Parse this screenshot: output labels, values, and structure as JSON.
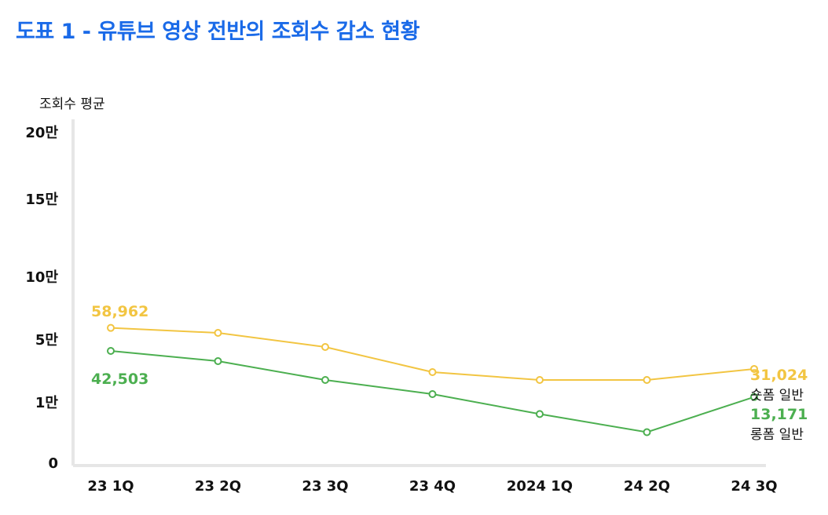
{
  "title": "도표 1 - 유튜브 영상 전반의 조회수 감소 현황",
  "colors": {
    "title": "#1a6ae8",
    "shorts": "#f2c542",
    "longform": "#4caf50",
    "axis": "#e6e6e6",
    "text": "#111111"
  },
  "chart_data": {
    "type": "line",
    "title": "도표 1 - 유튜브 영상 전반의 조회수 감소 현황",
    "ylabel": "조회수 평균",
    "xlabel": "",
    "categories": [
      "23 1Q",
      "23 2Q",
      "23 3Q",
      "23 4Q",
      "2024 1Q",
      "24 2Q",
      "24 3Q"
    ],
    "ytick_labels": [
      "0",
      "1만",
      "5만",
      "10만",
      "15만",
      "20만"
    ],
    "ytick_values": [
      0,
      10000,
      50000,
      100000,
      150000,
      200000
    ],
    "grid": false,
    "series": [
      {
        "name": "숏폼 일반",
        "color": "#f2c542",
        "values": [
          58962,
          55000,
          45000,
          29000,
          24000,
          24000,
          31024
        ],
        "start_label": "58,962",
        "end_label": "31,024"
      },
      {
        "name": "롱폼 일반",
        "color": "#4caf50",
        "values": [
          42503,
          36000,
          24000,
          15000,
          8000,
          5000,
          13171
        ],
        "start_label": "42,503",
        "end_label": "13,171"
      }
    ]
  }
}
